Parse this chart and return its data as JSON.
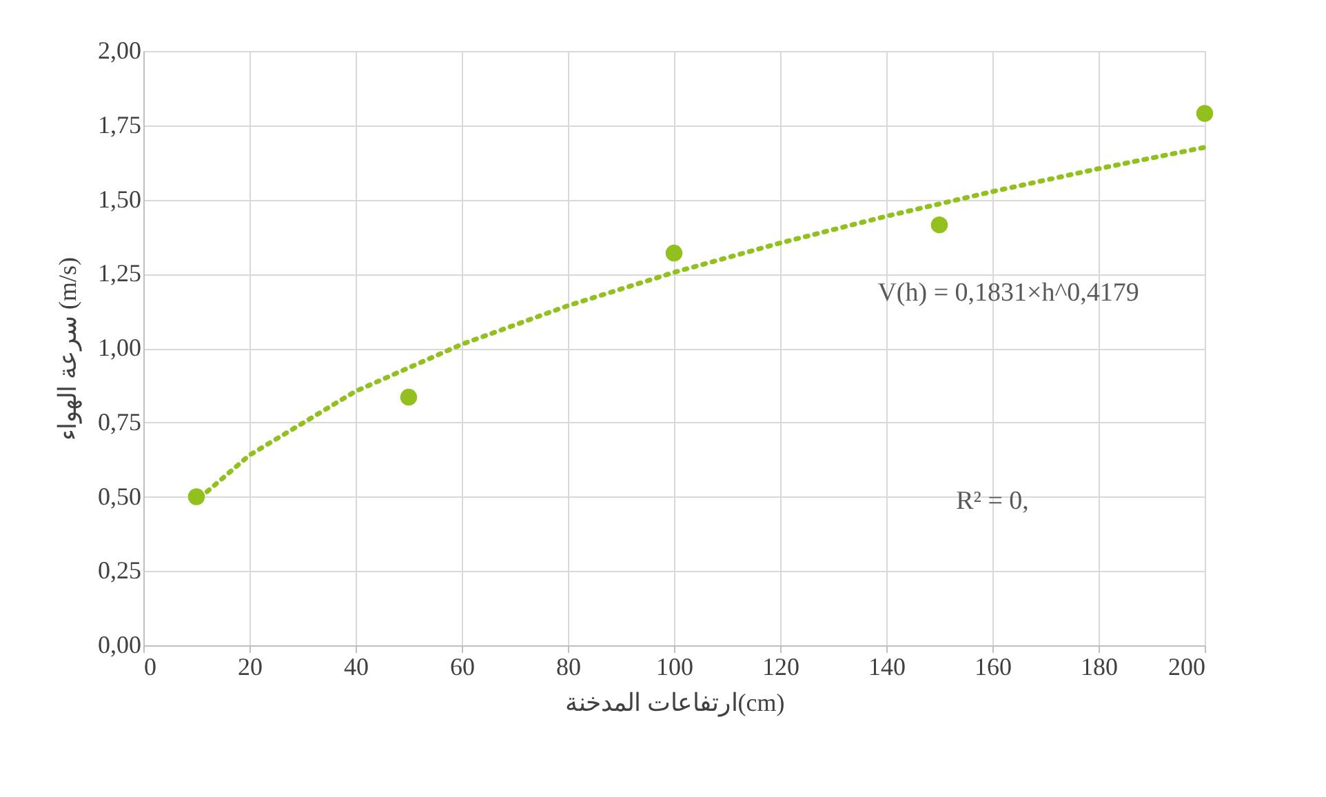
{
  "chart_data": {
    "type": "scatter",
    "xlabel": "ارتفاعات المدخنة(cm)",
    "ylabel": "سرعة الهواء (m/s)",
    "series": [
      {
        "color": "#92c01f",
        "marker": "circle",
        "x": [
          10,
          50,
          100,
          150,
          200
        ],
        "values": [
          0.5,
          0.835,
          1.32,
          1.415,
          1.79
        ]
      },
      {
        "type": "line",
        "color": "#92c01f",
        "line_style": "dotted",
        "marker": "none",
        "x": [
          12,
          20,
          40,
          60,
          80,
          100,
          120,
          140,
          160,
          180,
          200
        ],
        "values": [
          0.517,
          0.64,
          0.855,
          1.013,
          1.143,
          1.255,
          1.354,
          1.444,
          1.527,
          1.604,
          1.676
        ]
      }
    ],
    "annotations": [
      "V(h) = 0,1831×h^0,4179",
      "R² = 0,"
    ],
    "xlim": [
      0,
      200
    ],
    "xticks": [
      0,
      20,
      40,
      60,
      80,
      100,
      120,
      140,
      160,
      180,
      200
    ],
    "ylim": [
      0,
      2
    ],
    "yticks": [
      {
        "value": 0,
        "label": "0,00"
      },
      {
        "value": 0.25,
        "label": "0,25"
      },
      {
        "value": 0.5,
        "label": "0,50"
      },
      {
        "value": 0.75,
        "label": "0,75"
      },
      {
        "value": 1,
        "label": "1,00"
      },
      {
        "value": 1.25,
        "label": "1,25"
      },
      {
        "value": 1.5,
        "label": "1,50"
      },
      {
        "value": 1.75,
        "label": "1,75"
      },
      {
        "value": 2,
        "label": "2,00"
      }
    ],
    "grid": true
  }
}
